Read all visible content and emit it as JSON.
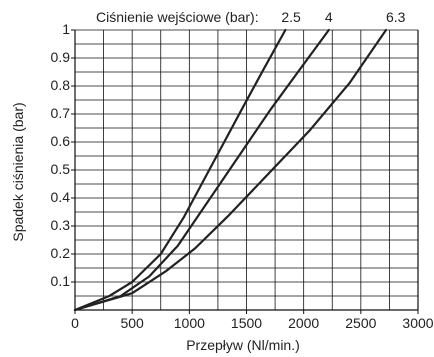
{
  "chart_data": {
    "type": "line",
    "title": "Ciśnienie wejściowe (bar):",
    "xlabel": "Przepływ (Nl/min.)",
    "ylabel": "Spadek ciśnienia (bar)",
    "xlim": [
      0,
      3000
    ],
    "ylim": [
      0,
      1
    ],
    "x_ticks": [
      0,
      500,
      1000,
      1500,
      2000,
      2500,
      3000
    ],
    "y_ticks": [
      0.1,
      0.2,
      0.3,
      0.4,
      0.5,
      0.6,
      0.7,
      0.8,
      0.9,
      1
    ],
    "x_tick_labels": [
      "0",
      "500",
      "1000",
      "1500",
      "2000",
      "2500",
      "3000"
    ],
    "y_tick_labels": [
      "0.1",
      "0.2",
      "0.3",
      "0.4",
      "0.5",
      "0.6",
      "0.7",
      "0.8",
      "0.9",
      "1"
    ],
    "grid": true,
    "series": [
      {
        "name": "2.5",
        "color": "#222222",
        "points": [
          [
            0,
            0
          ],
          [
            300,
            0.05
          ],
          [
            500,
            0.1
          ],
          [
            750,
            0.2
          ],
          [
            950,
            0.33
          ],
          [
            1200,
            0.52
          ],
          [
            1450,
            0.71
          ],
          [
            1650,
            0.86
          ],
          [
            1840,
            1.0
          ]
        ]
      },
      {
        "name": "4",
        "color": "#222222",
        "points": [
          [
            0,
            0
          ],
          [
            400,
            0.05
          ],
          [
            650,
            0.12
          ],
          [
            900,
            0.23
          ],
          [
            1150,
            0.38
          ],
          [
            1450,
            0.56
          ],
          [
            1700,
            0.71
          ],
          [
            1950,
            0.85
          ],
          [
            2220,
            1.0
          ]
        ]
      },
      {
        "name": "6.3",
        "color": "#222222",
        "points": [
          [
            0,
            0
          ],
          [
            500,
            0.06
          ],
          [
            800,
            0.14
          ],
          [
            1050,
            0.22
          ],
          [
            1350,
            0.34
          ],
          [
            1700,
            0.49
          ],
          [
            2050,
            0.64
          ],
          [
            2400,
            0.81
          ],
          [
            2720,
            1.0
          ]
        ]
      }
    ]
  }
}
